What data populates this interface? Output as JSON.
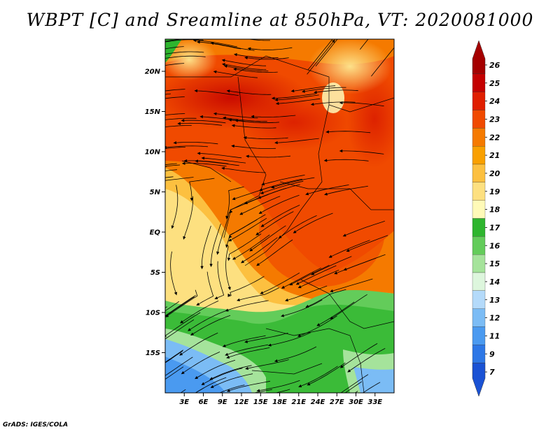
{
  "title": "WBPT [C] and Sreamline at 850hPa, VT: 2020081000",
  "credit": "GrADS: IGES/COLA",
  "map": {
    "variable": "WBPT",
    "units": "C",
    "overlay": "streamlines",
    "level": "850hPa",
    "valid_time": "2020081000",
    "lon_range": [
      0,
      36
    ],
    "lat_range": [
      -20,
      24
    ],
    "lat_ticks": [
      {
        "label": "20N",
        "value": 20
      },
      {
        "label": "15N",
        "value": 15
      },
      {
        "label": "10N",
        "value": 10
      },
      {
        "label": "5N",
        "value": 5
      },
      {
        "label": "EQ",
        "value": 0
      },
      {
        "label": "5S",
        "value": -5
      },
      {
        "label": "10S",
        "value": -10
      },
      {
        "label": "15S",
        "value": -15
      }
    ],
    "lon_ticks": [
      {
        "label": "3E",
        "value": 3
      },
      {
        "label": "6E",
        "value": 6
      },
      {
        "label": "9E",
        "value": 9
      },
      {
        "label": "12E",
        "value": 12
      },
      {
        "label": "15E",
        "value": 15
      },
      {
        "label": "18E",
        "value": 18
      },
      {
        "label": "21E",
        "value": 21
      },
      {
        "label": "24E",
        "value": 24
      },
      {
        "label": "27E",
        "value": 27
      },
      {
        "label": "30E",
        "value": 30
      },
      {
        "label": "33E",
        "value": 33
      }
    ]
  },
  "colorbar": {
    "arrows": true,
    "levels": [
      {
        "label": "26",
        "color": "#a50000"
      },
      {
        "label": "25",
        "color": "#c40000"
      },
      {
        "label": "24",
        "color": "#e01e00"
      },
      {
        "label": "23",
        "color": "#f04a00"
      },
      {
        "label": "22",
        "color": "#f57a00"
      },
      {
        "label": "21",
        "color": "#f9a000"
      },
      {
        "label": "20",
        "color": "#fcc040"
      },
      {
        "label": "19",
        "color": "#fde080"
      },
      {
        "label": "18",
        "color": "#fffab8"
      },
      {
        "label": "17",
        "color": "#2eb52e"
      },
      {
        "label": "16",
        "color": "#63cc5a"
      },
      {
        "label": "15",
        "color": "#a5e39b"
      },
      {
        "label": "14",
        "color": "#ddf6dd"
      },
      {
        "label": "13",
        "color": "#b4dafa"
      },
      {
        "label": "12",
        "color": "#7bbcf5"
      },
      {
        "label": "11",
        "color": "#4a9af0"
      },
      {
        "label": "9",
        "color": "#2d77e6"
      },
      {
        "label": "7",
        "color": "#1a52d4"
      }
    ]
  }
}
